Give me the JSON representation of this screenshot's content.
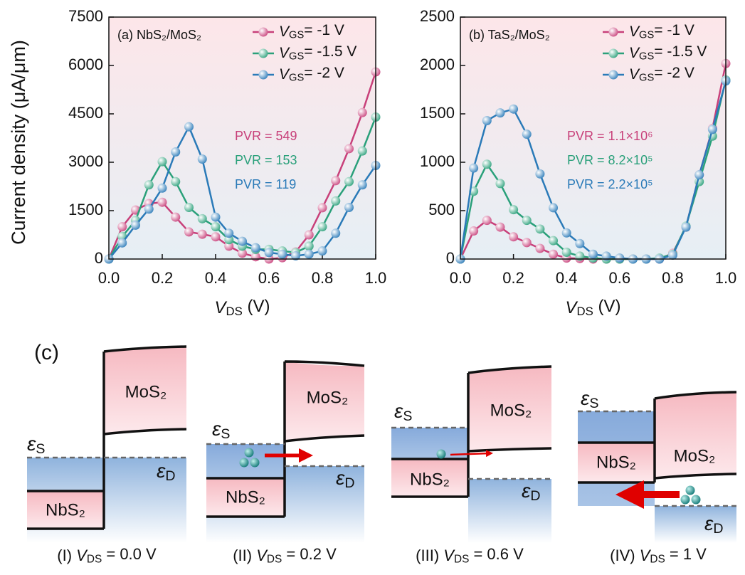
{
  "chart_data": [
    {
      "type": "line",
      "panel_label": "(a) NbS₂/MoS₂",
      "xlabel": "VDS (V)",
      "ylabel": "Current density (μA/μm)",
      "x": [
        0,
        0.05,
        0.1,
        0.15,
        0.2,
        0.25,
        0.3,
        0.35,
        0.4,
        0.45,
        0.5,
        0.55,
        0.6,
        0.65,
        0.7,
        0.75,
        0.8,
        0.85,
        0.9,
        0.95,
        1
      ],
      "series": [
        {
          "name": "VGS= -1 V",
          "color": "#c8407a",
          "values": [
            0,
            1000,
            1520,
            1720,
            1760,
            1300,
            840,
            770,
            690,
            400,
            180,
            70,
            0,
            40,
            220,
            750,
            1590,
            2430,
            3420,
            4540,
            5800
          ]
        },
        {
          "name": "VGS= -1.5 V",
          "color": "#2aa07a",
          "values": [
            0,
            700,
            1200,
            2300,
            3020,
            2400,
            1600,
            1250,
            1000,
            600,
            400,
            300,
            300,
            250,
            200,
            400,
            1000,
            1800,
            2400,
            3350,
            4400
          ]
        },
        {
          "name": "VGS= -2 V",
          "color": "#2a7ab8",
          "values": [
            0,
            500,
            1050,
            1550,
            2200,
            3320,
            4100,
            3100,
            1300,
            800,
            550,
            350,
            200,
            150,
            100,
            150,
            250,
            800,
            1600,
            2300,
            2900
          ]
        }
      ],
      "xlim": [
        0,
        1
      ],
      "ylim": [
        0,
        7500
      ],
      "xticks": [
        {
          "value": 0,
          "label": "0.0"
        },
        0.2,
        0.4,
        0.6,
        0.8,
        {
          "value": 1,
          "label": "1.0"
        }
      ],
      "yticks": [
        0,
        1500,
        3000,
        4500,
        6000,
        7500
      ],
      "legend": "upper right",
      "annotations": [
        {
          "text": "PVR = 549",
          "color": "#c8407a"
        },
        {
          "text": "PVR = 153",
          "color": "#2aa07a"
        },
        {
          "text": "PVR = 119",
          "color": "#2a7ab8"
        }
      ]
    },
    {
      "type": "line",
      "panel_label": "(b) TaS₂/MoS₂",
      "xlabel": "VDS (V)",
      "x": [
        0,
        0.05,
        0.1,
        0.15,
        0.2,
        0.25,
        0.3,
        0.35,
        0.4,
        0.45,
        0.5,
        0.55,
        0.6,
        0.65,
        0.7,
        0.75,
        0.8,
        0.85,
        0.9,
        0.95,
        1
      ],
      "series": [
        {
          "name": "VGS= -1 V",
          "color": "#c8407a",
          "values": [
            0,
            290,
            400,
            330,
            230,
            170,
            110,
            50,
            10,
            5,
            0,
            0,
            0,
            0,
            0,
            0,
            60,
            330,
            870,
            1350,
            2020
          ]
        },
        {
          "name": "VGS= -1.5 V",
          "color": "#2aa07a",
          "values": [
            0,
            700,
            980,
            780,
            510,
            400,
            310,
            190,
            70,
            30,
            10,
            0,
            0,
            0,
            0,
            10,
            50,
            340,
            800,
            1270,
            1850
          ]
        },
        {
          "name": "VGS= -2 V",
          "color": "#2a7ab8",
          "values": [
            0,
            940,
            1430,
            1510,
            1550,
            1290,
            880,
            530,
            270,
            160,
            50,
            30,
            10,
            0,
            0,
            0,
            40,
            330,
            870,
            1340,
            1840
          ]
        }
      ],
      "xlim": [
        0,
        1
      ],
      "ylim": [
        0,
        2500
      ],
      "xticks": [
        {
          "value": 0,
          "label": "0.0"
        },
        0.2,
        0.4,
        0.6,
        0.8,
        {
          "value": 1,
          "label": "1.0"
        }
      ],
      "yticks": [
        0,
        500,
        1000,
        1500,
        2000,
        2500
      ],
      "legend": "upper right",
      "annotations": [
        {
          "text": "PVR = 1.1×10⁶",
          "color": "#c8407a"
        },
        {
          "text": "PVR = 8.2×10⁵",
          "color": "#2aa07a"
        },
        {
          "text": "PVR = 2.2×10⁵",
          "color": "#2a7ab8"
        }
      ]
    }
  ],
  "diagram": {
    "label": "(c)",
    "panels": [
      {
        "top_label": "MoS₂",
        "bottom_label": "NbS₂",
        "source_level": "εS",
        "drain_level": "εD",
        "caption": "(I) VDS = 0.0 V"
      },
      {
        "top_label": "MoS₂",
        "bottom_label": "NbS₂",
        "source_level": "εS",
        "drain_level": "εD",
        "caption": "(II) VDS = 0.2 V"
      },
      {
        "top_label": "MoS₂",
        "bottom_label": "NbS₂",
        "source_level": "εS",
        "drain_level": "εD",
        "caption": "(III) VDS = 0.6 V"
      },
      {
        "top_label": "MoS₂",
        "bottom_label": "NbS₂",
        "source_level": "εS",
        "drain_level": "εD",
        "caption": "(IV) VDS = 1 V"
      }
    ]
  }
}
